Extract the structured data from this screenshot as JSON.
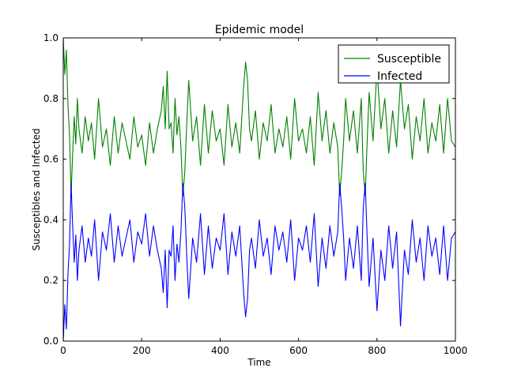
{
  "chart_data": {
    "type": "line",
    "title": "Epidemic model",
    "xlabel": "Time",
    "ylabel": "Susceptibles and Infected",
    "xlim": [
      0,
      1000
    ],
    "ylim": [
      0.0,
      1.0
    ],
    "xticks": [
      0,
      200,
      400,
      600,
      800,
      1000
    ],
    "xtick_labels": [
      "0",
      "200",
      "400",
      "600",
      "800",
      "1000"
    ],
    "yticks": [
      0.0,
      0.2,
      0.4,
      0.6,
      0.8,
      1.0
    ],
    "ytick_labels": [
      "0.0",
      "0.2",
      "0.4",
      "0.6",
      "0.8",
      "1.0"
    ],
    "grid": false,
    "legend": "top-right",
    "series": [
      {
        "name": "Susceptible",
        "color": "#008000",
        "x": [
          0,
          4,
          8,
          12,
          16,
          20,
          24,
          28,
          32,
          36,
          40,
          48,
          56,
          64,
          72,
          80,
          90,
          100,
          110,
          120,
          130,
          140,
          150,
          160,
          170,
          180,
          190,
          200,
          210,
          220,
          230,
          240,
          250,
          255,
          260,
          265,
          270,
          275,
          280,
          285,
          290,
          295,
          300,
          305,
          310,
          315,
          320,
          330,
          340,
          350,
          360,
          370,
          380,
          390,
          400,
          410,
          420,
          430,
          440,
          450,
          460,
          465,
          470,
          475,
          480,
          490,
          500,
          510,
          520,
          530,
          540,
          550,
          560,
          570,
          580,
          590,
          600,
          610,
          620,
          630,
          640,
          650,
          660,
          670,
          680,
          690,
          700,
          705,
          710,
          715,
          720,
          730,
          740,
          750,
          760,
          765,
          770,
          775,
          780,
          790,
          800,
          810,
          820,
          830,
          840,
          850,
          860,
          870,
          880,
          890,
          900,
          910,
          920,
          930,
          940,
          950,
          960,
          970,
          980,
          990,
          1000
        ],
        "y": [
          1.0,
          0.88,
          0.96,
          0.78,
          0.68,
          0.48,
          0.62,
          0.74,
          0.65,
          0.8,
          0.7,
          0.62,
          0.74,
          0.66,
          0.72,
          0.6,
          0.8,
          0.64,
          0.7,
          0.58,
          0.74,
          0.62,
          0.72,
          0.66,
          0.6,
          0.74,
          0.64,
          0.68,
          0.58,
          0.72,
          0.62,
          0.7,
          0.76,
          0.84,
          0.7,
          0.89,
          0.7,
          0.72,
          0.62,
          0.8,
          0.68,
          0.74,
          0.64,
          0.48,
          0.56,
          0.72,
          0.86,
          0.66,
          0.74,
          0.58,
          0.78,
          0.62,
          0.76,
          0.66,
          0.7,
          0.58,
          0.78,
          0.64,
          0.72,
          0.62,
          0.84,
          0.92,
          0.86,
          0.7,
          0.66,
          0.76,
          0.6,
          0.72,
          0.66,
          0.78,
          0.62,
          0.7,
          0.64,
          0.74,
          0.6,
          0.8,
          0.66,
          0.7,
          0.62,
          0.74,
          0.58,
          0.82,
          0.66,
          0.76,
          0.62,
          0.72,
          0.64,
          0.48,
          0.56,
          0.66,
          0.8,
          0.66,
          0.76,
          0.62,
          0.8,
          0.56,
          0.48,
          0.66,
          0.82,
          0.66,
          0.9,
          0.7,
          0.8,
          0.62,
          0.76,
          0.64,
          0.86,
          0.7,
          0.78,
          0.6,
          0.74,
          0.66,
          0.8,
          0.62,
          0.72,
          0.66,
          0.78,
          0.62,
          0.8,
          0.66,
          0.64
        ]
      },
      {
        "name": "Infected",
        "color": "#0000ff",
        "x": [
          0,
          4,
          8,
          12,
          16,
          20,
          24,
          28,
          32,
          36,
          40,
          48,
          56,
          64,
          72,
          80,
          90,
          100,
          110,
          120,
          130,
          140,
          150,
          160,
          170,
          180,
          190,
          200,
          210,
          220,
          230,
          240,
          250,
          255,
          260,
          265,
          270,
          275,
          280,
          285,
          290,
          295,
          300,
          305,
          310,
          315,
          320,
          330,
          340,
          350,
          360,
          370,
          380,
          390,
          400,
          410,
          420,
          430,
          440,
          450,
          460,
          465,
          470,
          475,
          480,
          490,
          500,
          510,
          520,
          530,
          540,
          550,
          560,
          570,
          580,
          590,
          600,
          610,
          620,
          630,
          640,
          650,
          660,
          670,
          680,
          690,
          700,
          705,
          710,
          715,
          720,
          730,
          740,
          750,
          760,
          765,
          770,
          775,
          780,
          790,
          800,
          810,
          820,
          830,
          840,
          850,
          860,
          870,
          880,
          890,
          900,
          910,
          920,
          930,
          940,
          950,
          960,
          970,
          980,
          990,
          1000
        ],
        "y": [
          0.0,
          0.12,
          0.04,
          0.22,
          0.32,
          0.52,
          0.38,
          0.26,
          0.35,
          0.2,
          0.3,
          0.38,
          0.26,
          0.34,
          0.28,
          0.4,
          0.2,
          0.36,
          0.3,
          0.42,
          0.26,
          0.38,
          0.28,
          0.34,
          0.4,
          0.26,
          0.36,
          0.32,
          0.42,
          0.28,
          0.38,
          0.3,
          0.24,
          0.16,
          0.3,
          0.11,
          0.3,
          0.28,
          0.38,
          0.2,
          0.32,
          0.26,
          0.36,
          0.52,
          0.44,
          0.28,
          0.14,
          0.34,
          0.26,
          0.42,
          0.22,
          0.38,
          0.24,
          0.34,
          0.3,
          0.42,
          0.22,
          0.36,
          0.28,
          0.38,
          0.16,
          0.08,
          0.14,
          0.3,
          0.34,
          0.24,
          0.4,
          0.28,
          0.34,
          0.22,
          0.38,
          0.3,
          0.36,
          0.26,
          0.4,
          0.2,
          0.34,
          0.3,
          0.38,
          0.26,
          0.42,
          0.18,
          0.34,
          0.24,
          0.38,
          0.28,
          0.36,
          0.52,
          0.44,
          0.34,
          0.2,
          0.34,
          0.24,
          0.38,
          0.2,
          0.44,
          0.52,
          0.34,
          0.18,
          0.34,
          0.1,
          0.3,
          0.2,
          0.38,
          0.24,
          0.36,
          0.05,
          0.3,
          0.22,
          0.4,
          0.26,
          0.34,
          0.2,
          0.38,
          0.28,
          0.34,
          0.22,
          0.38,
          0.2,
          0.34,
          0.36
        ]
      }
    ]
  }
}
